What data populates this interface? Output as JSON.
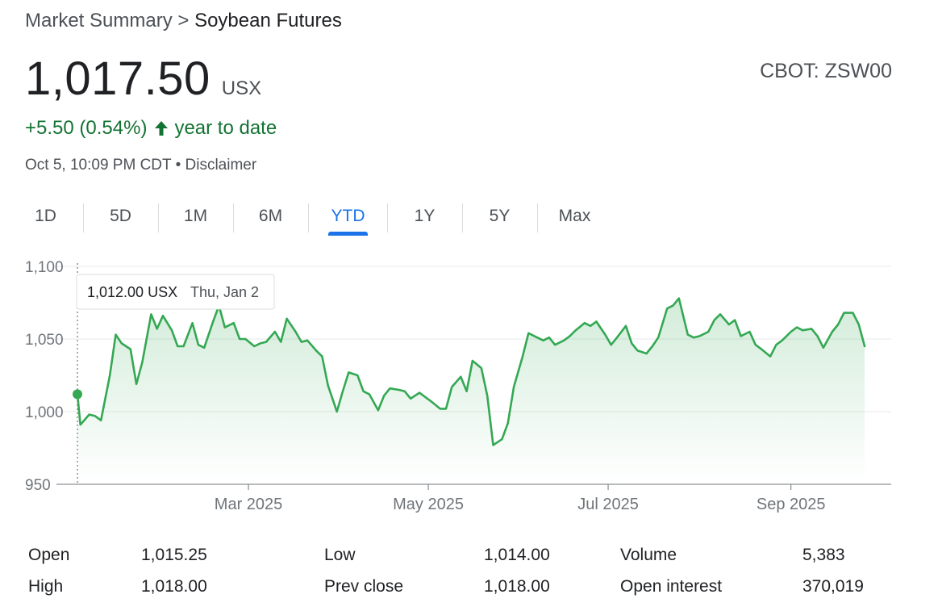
{
  "breadcrumb": {
    "parent": "Market Summary",
    "separator": ">",
    "current": "Soybean Futures"
  },
  "price": {
    "value": "1,017.50",
    "currency": "USX"
  },
  "ticker": "CBOT: ZSW00",
  "change": {
    "text": "+5.50 (0.54%)",
    "direction_icon": "arrow-up-icon",
    "period": "year to date",
    "color": "#137333"
  },
  "meta": {
    "timestamp": "Oct 5, 10:09 PM CDT",
    "bullet": "•",
    "disclaimer": "Disclaimer"
  },
  "tabs": [
    {
      "label": "1D"
    },
    {
      "label": "5D"
    },
    {
      "label": "1M"
    },
    {
      "label": "6M"
    },
    {
      "label": "YTD",
      "active": true
    },
    {
      "label": "1Y"
    },
    {
      "label": "5Y"
    },
    {
      "label": "Max"
    }
  ],
  "tooltip": {
    "value": "1,012.00 USX",
    "date": "Thu, Jan 2"
  },
  "chart_data": {
    "type": "line",
    "series_color": "#34a853",
    "ylim": [
      950,
      1100
    ],
    "y_ticks": [
      {
        "value": 950,
        "label": "950"
      },
      {
        "value": 1000,
        "label": "1,000"
      },
      {
        "value": 1050,
        "label": "1,050"
      },
      {
        "value": 1100,
        "label": "1,100"
      }
    ],
    "x_ticks": [
      {
        "date": "2025-03-01",
        "label": "Mar 2025"
      },
      {
        "date": "2025-05-01",
        "label": "May 2025"
      },
      {
        "date": "2025-07-01",
        "label": "Jul 2025"
      },
      {
        "date": "2025-09-01",
        "label": "Sep 2025"
      }
    ],
    "xlim": [
      "2025-01-02",
      "2025-10-05"
    ],
    "grid": true,
    "highlight": {
      "date": "2025-01-02",
      "value": 1012
    },
    "points": [
      [
        "2025-01-02",
        1012
      ],
      [
        "2025-01-03",
        991
      ],
      [
        "2025-01-06",
        998
      ],
      [
        "2025-01-08",
        997
      ],
      [
        "2025-01-10",
        994
      ],
      [
        "2025-01-13",
        1025
      ],
      [
        "2025-01-15",
        1053
      ],
      [
        "2025-01-17",
        1047
      ],
      [
        "2025-01-20",
        1043
      ],
      [
        "2025-01-22",
        1019
      ],
      [
        "2025-01-24",
        1034
      ],
      [
        "2025-01-27",
        1067
      ],
      [
        "2025-01-29",
        1057
      ],
      [
        "2025-01-31",
        1066
      ],
      [
        "2025-02-03",
        1056
      ],
      [
        "2025-02-05",
        1045
      ],
      [
        "2025-02-07",
        1045
      ],
      [
        "2025-02-10",
        1061
      ],
      [
        "2025-02-12",
        1046
      ],
      [
        "2025-02-14",
        1044
      ],
      [
        "2025-02-17",
        1062
      ],
      [
        "2025-02-19",
        1073
      ],
      [
        "2025-02-21",
        1058
      ],
      [
        "2025-02-24",
        1061
      ],
      [
        "2025-02-26",
        1050
      ],
      [
        "2025-02-28",
        1050
      ],
      [
        "2025-03-03",
        1045
      ],
      [
        "2025-03-05",
        1047
      ],
      [
        "2025-03-07",
        1048
      ],
      [
        "2025-03-10",
        1055
      ],
      [
        "2025-03-12",
        1048
      ],
      [
        "2025-03-14",
        1064
      ],
      [
        "2025-03-17",
        1055
      ],
      [
        "2025-03-19",
        1048
      ],
      [
        "2025-03-21",
        1049
      ],
      [
        "2025-03-24",
        1042
      ],
      [
        "2025-03-26",
        1038
      ],
      [
        "2025-03-28",
        1018
      ],
      [
        "2025-03-31",
        1000
      ],
      [
        "2025-04-02",
        1014
      ],
      [
        "2025-04-04",
        1027
      ],
      [
        "2025-04-07",
        1025
      ],
      [
        "2025-04-09",
        1014
      ],
      [
        "2025-04-11",
        1012
      ],
      [
        "2025-04-14",
        1001
      ],
      [
        "2025-04-16",
        1011
      ],
      [
        "2025-04-18",
        1016
      ],
      [
        "2025-04-21",
        1015
      ],
      [
        "2025-04-23",
        1014
      ],
      [
        "2025-04-25",
        1009
      ],
      [
        "2025-04-28",
        1013
      ],
      [
        "2025-04-30",
        1010
      ],
      [
        "2025-05-02",
        1007
      ],
      [
        "2025-05-05",
        1002
      ],
      [
        "2025-05-07",
        1002
      ],
      [
        "2025-05-09",
        1017
      ],
      [
        "2025-05-12",
        1024
      ],
      [
        "2025-05-14",
        1014
      ],
      [
        "2025-05-16",
        1035
      ],
      [
        "2025-05-19",
        1030
      ],
      [
        "2025-05-21",
        1011
      ],
      [
        "2025-05-23",
        977
      ],
      [
        "2025-05-26",
        981
      ],
      [
        "2025-05-28",
        992
      ],
      [
        "2025-05-30",
        1017
      ],
      [
        "2025-06-02",
        1038
      ],
      [
        "2025-06-04",
        1054
      ],
      [
        "2025-06-06",
        1052
      ],
      [
        "2025-06-09",
        1049
      ],
      [
        "2025-06-11",
        1051
      ],
      [
        "2025-06-13",
        1046
      ],
      [
        "2025-06-16",
        1049
      ],
      [
        "2025-06-18",
        1052
      ],
      [
        "2025-06-20",
        1056
      ],
      [
        "2025-06-23",
        1061
      ],
      [
        "2025-06-25",
        1059
      ],
      [
        "2025-06-27",
        1062
      ],
      [
        "2025-06-30",
        1053
      ],
      [
        "2025-07-02",
        1046
      ],
      [
        "2025-07-04",
        1051
      ],
      [
        "2025-07-07",
        1059
      ],
      [
        "2025-07-09",
        1047
      ],
      [
        "2025-07-11",
        1042
      ],
      [
        "2025-07-14",
        1040
      ],
      [
        "2025-07-16",
        1045
      ],
      [
        "2025-07-18",
        1051
      ],
      [
        "2025-07-21",
        1071
      ],
      [
        "2025-07-23",
        1073
      ],
      [
        "2025-07-25",
        1078
      ],
      [
        "2025-07-28",
        1053
      ],
      [
        "2025-07-30",
        1051
      ],
      [
        "2025-08-01",
        1052
      ],
      [
        "2025-08-04",
        1055
      ],
      [
        "2025-08-06",
        1063
      ],
      [
        "2025-08-08",
        1067
      ],
      [
        "2025-08-11",
        1060
      ],
      [
        "2025-08-13",
        1063
      ],
      [
        "2025-08-15",
        1052
      ],
      [
        "2025-08-18",
        1055
      ],
      [
        "2025-08-20",
        1046
      ],
      [
        "2025-08-22",
        1043
      ],
      [
        "2025-08-25",
        1038
      ],
      [
        "2025-08-27",
        1046
      ],
      [
        "2025-08-29",
        1049
      ],
      [
        "2025-09-01",
        1055
      ],
      [
        "2025-09-03",
        1058
      ],
      [
        "2025-09-05",
        1056
      ],
      [
        "2025-09-08",
        1057
      ],
      [
        "2025-09-10",
        1052
      ],
      [
        "2025-09-12",
        1044
      ],
      [
        "2025-09-15",
        1055
      ],
      [
        "2025-09-17",
        1060
      ],
      [
        "2025-09-19",
        1068
      ],
      [
        "2025-09-22",
        1068
      ],
      [
        "2025-09-24",
        1060
      ],
      [
        "2025-09-26",
        1045
      ]
    ]
  },
  "stats": [
    {
      "label": "Open",
      "value": "1,015.25"
    },
    {
      "label": "High",
      "value": "1,018.00"
    },
    {
      "label": "Low",
      "value": "1,014.00"
    },
    {
      "label": "Prev close",
      "value": "1,018.00"
    },
    {
      "label": "Volume",
      "value": "5,383"
    },
    {
      "label": "Open interest",
      "value": "370,019"
    }
  ]
}
